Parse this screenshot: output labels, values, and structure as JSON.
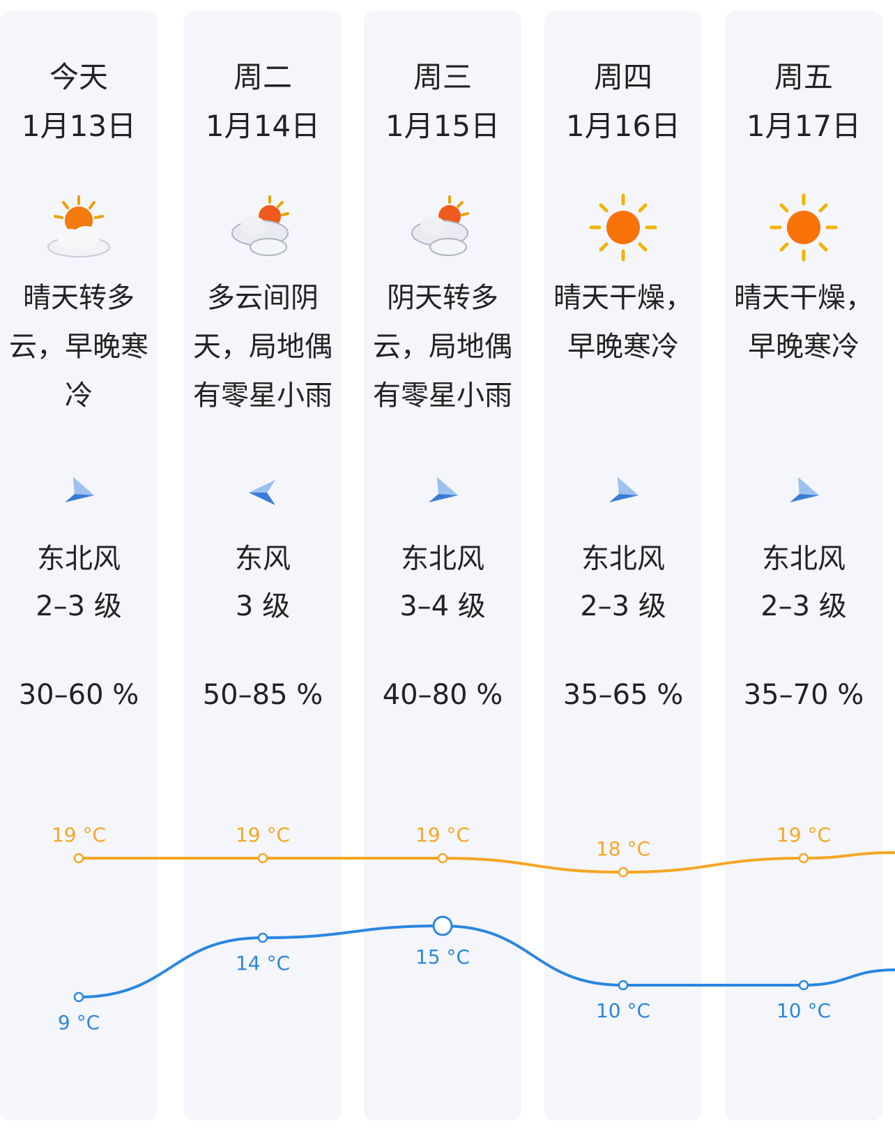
{
  "days": [
    {
      "name": "今天",
      "date": "1月13日",
      "icon": "partly-cloudy-icon",
      "desc": [
        "晴天转多",
        "云，早晚寒",
        "冷"
      ],
      "wind_dir": "东北风",
      "wind_level": "2–3 级",
      "humidity": "30–60 %",
      "high": "19 °C",
      "low": "9 °C"
    },
    {
      "name": "周二",
      "date": "1月14日",
      "icon": "cloudy-icon",
      "desc": [
        "多云间阴",
        "天，局地偶",
        "有零星小雨"
      ],
      "wind_dir": "东风",
      "wind_level": "3 级",
      "humidity": "50–85 %",
      "high": "19 °C",
      "low": "14 °C"
    },
    {
      "name": "周三",
      "date": "1月15日",
      "icon": "cloudy-icon",
      "desc": [
        "阴天转多",
        "云，局地偶",
        "有零星小雨"
      ],
      "wind_dir": "东北风",
      "wind_level": "3–4 级",
      "humidity": "40–80 %",
      "high": "19 °C",
      "low": "15 °C"
    },
    {
      "name": "周四",
      "date": "1月16日",
      "icon": "sunny-icon",
      "desc": [
        "晴天干燥，",
        "早晚寒冷",
        ""
      ],
      "wind_dir": "东北风",
      "wind_level": "2–3 级",
      "humidity": "35–65 %",
      "high": "18 °C",
      "low": "10 °C"
    },
    {
      "name": "周五",
      "date": "1月17日",
      "icon": "sunny-icon",
      "desc": [
        "晴天干燥，",
        "早晚寒冷",
        ""
      ],
      "wind_dir": "东北风",
      "wind_level": "2–3 级",
      "humidity": "35–70 %",
      "high": "19 °C",
      "low": "10 °C"
    }
  ],
  "colors": {
    "high": "#f5a623",
    "low": "#2b86e0",
    "column_bg": "#f5f6fb",
    "arrow": "#3a7bd5"
  },
  "chart_data": {
    "type": "line",
    "categories": [
      "今天",
      "周二",
      "周三",
      "周四",
      "周五"
    ],
    "series": [
      {
        "values": [
          19,
          19,
          19,
          18,
          19
        ]
      },
      {
        "values": [
          9,
          14,
          15,
          10,
          10
        ]
      }
    ]
  }
}
